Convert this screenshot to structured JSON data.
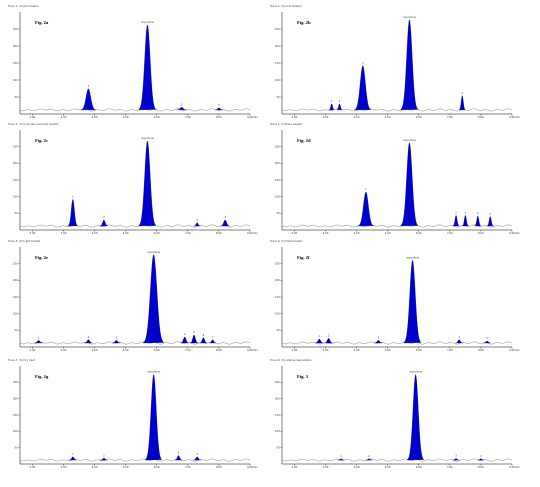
{
  "chart_data": [
    {
      "type": "area",
      "label": "Fig. 2a",
      "title": "Trace 1: (S) Not treated",
      "xlabel": "min",
      "xlim": [
        1.6,
        9.0
      ],
      "ylim": [
        0,
        300
      ],
      "x_ticks": [
        "2.00",
        "3.00",
        "4.00",
        "5.00",
        "6.00",
        "7.00",
        "8.00",
        "9.00"
      ],
      "y_ticks": [
        "50",
        "100",
        "150",
        "200",
        "250"
      ],
      "peaks": [
        {
          "rt": 3.8,
          "height": 62,
          "width": 0.18,
          "label": "1"
        },
        {
          "rt": 5.7,
          "height": 250,
          "width": 0.21,
          "label": "oxycodone"
        },
        {
          "rt": 6.8,
          "height": 8,
          "width": 0.12,
          "label": "2"
        },
        {
          "rt": 8.0,
          "height": 6,
          "width": 0.1,
          "label": "3"
        }
      ]
    },
    {
      "type": "area",
      "label": "Fig. 2b",
      "title": "Trace 2: (S) Acid treated",
      "xlabel": "min",
      "xlim": [
        1.6,
        9.0
      ],
      "ylim": [
        0,
        300
      ],
      "x_ticks": [
        "2.00",
        "3.00",
        "4.00",
        "5.00",
        "6.00",
        "7.00",
        "8.00",
        "9.00"
      ],
      "y_ticks": [
        "50",
        "100",
        "150",
        "200",
        "250"
      ],
      "peaks": [
        {
          "rt": 3.2,
          "height": 18,
          "width": 0.07,
          "label": "1"
        },
        {
          "rt": 3.45,
          "height": 18,
          "width": 0.07,
          "label": "2"
        },
        {
          "rt": 4.2,
          "height": 130,
          "width": 0.2,
          "label": "3"
        },
        {
          "rt": 5.7,
          "height": 265,
          "width": 0.21,
          "label": "oxycodone"
        },
        {
          "rt": 7.4,
          "height": 42,
          "width": 0.08,
          "label": "4"
        }
      ]
    },
    {
      "type": "area",
      "label": "Fig. 2c",
      "title": "Trace 3: (S) hydrogen peroxide treated",
      "xlabel": "min",
      "xlim": [
        1.6,
        9.0
      ],
      "ylim": [
        0,
        300
      ],
      "x_ticks": [
        "2.00",
        "3.00",
        "4.00",
        "5.00",
        "6.00",
        "7.00",
        "8.00",
        "9.00"
      ],
      "y_ticks": [
        "50",
        "100",
        "150",
        "200",
        "250"
      ],
      "peaks": [
        {
          "rt": 3.3,
          "height": 80,
          "width": 0.12,
          "label": "1"
        },
        {
          "rt": 4.3,
          "height": 18,
          "width": 0.1,
          "label": "2"
        },
        {
          "rt": 5.7,
          "height": 255,
          "width": 0.21,
          "label": "oxycodone"
        },
        {
          "rt": 7.3,
          "height": 10,
          "width": 0.08,
          "label": "3"
        },
        {
          "rt": 8.2,
          "height": 18,
          "width": 0.11,
          "label": "4"
        }
      ]
    },
    {
      "type": "area",
      "label": "Fig. 2d",
      "title": "Trace 4: (S) Base treated",
      "xlabel": "min",
      "xlim": [
        1.6,
        9.0
      ],
      "ylim": [
        0,
        300
      ],
      "x_ticks": [
        "2.00",
        "3.00",
        "4.00",
        "5.00",
        "6.00",
        "7.00",
        "8.00",
        "9.00"
      ],
      "y_ticks": [
        "50",
        "100",
        "150",
        "200",
        "250"
      ],
      "peaks": [
        {
          "rt": 4.3,
          "height": 102,
          "width": 0.19,
          "label": "1"
        },
        {
          "rt": 5.7,
          "height": 250,
          "width": 0.21,
          "label": "oxycodone"
        },
        {
          "rt": 7.2,
          "height": 32,
          "width": 0.08,
          "label": "2"
        },
        {
          "rt": 7.5,
          "height": 32,
          "width": 0.08,
          "label": "3"
        },
        {
          "rt": 7.9,
          "height": 30,
          "width": 0.08,
          "label": "4"
        },
        {
          "rt": 8.3,
          "height": 28,
          "width": 0.08,
          "label": "5"
        }
      ]
    },
    {
      "type": "area",
      "label": "Fig. 2e",
      "title": "Trace 5: (S) Light treated",
      "xlabel": "min",
      "xlim": [
        1.6,
        9.0
      ],
      "ylim": [
        0,
        300
      ],
      "x_ticks": [
        "2.00",
        "3.00",
        "4.00",
        "5.00",
        "6.00",
        "7.00",
        "8.00",
        "9.00"
      ],
      "y_ticks": [
        "50",
        "100",
        "150",
        "200",
        "250"
      ],
      "peaks": [
        {
          "rt": 2.2,
          "height": 8,
          "width": 0.1,
          "label": "1"
        },
        {
          "rt": 3.8,
          "height": 10,
          "width": 0.1,
          "label": "2"
        },
        {
          "rt": 4.7,
          "height": 8,
          "width": 0.1,
          "label": "3"
        },
        {
          "rt": 5.9,
          "height": 265,
          "width": 0.25,
          "label": "oxycodone"
        },
        {
          "rt": 6.9,
          "height": 18,
          "width": 0.1,
          "label": "4"
        },
        {
          "rt": 7.2,
          "height": 24,
          "width": 0.1,
          "label": "5"
        },
        {
          "rt": 7.5,
          "height": 16,
          "width": 0.09,
          "label": "6"
        },
        {
          "rt": 7.8,
          "height": 10,
          "width": 0.08,
          "label": "7"
        }
      ]
    },
    {
      "type": "area",
      "label": "Fig. 2f",
      "title": "Trace 6: (S) Heat treated",
      "xlabel": "min",
      "xlim": [
        1.6,
        9.0
      ],
      "ylim": [
        0,
        300
      ],
      "x_ticks": [
        "2.00",
        "3.00",
        "4.00",
        "5.00",
        "6.00",
        "7.00",
        "8.00",
        "9.00"
      ],
      "y_ticks": [
        "50",
        "100",
        "150",
        "200",
        "250"
      ],
      "peaks": [
        {
          "rt": 2.8,
          "height": 12,
          "width": 0.1,
          "label": "1"
        },
        {
          "rt": 3.1,
          "height": 14,
          "width": 0.1,
          "label": "2"
        },
        {
          "rt": 4.7,
          "height": 8,
          "width": 0.1,
          "label": "3"
        },
        {
          "rt": 5.8,
          "height": 248,
          "width": 0.21,
          "label": "oxycodone"
        },
        {
          "rt": 7.3,
          "height": 10,
          "width": 0.09,
          "label": "4"
        },
        {
          "rt": 8.2,
          "height": 6,
          "width": 0.09,
          "label": "5"
        }
      ]
    },
    {
      "type": "area",
      "label": "Fig. 2g",
      "title": "Trace 7: (S) Dry heat",
      "xlabel": "min",
      "xlim": [
        1.6,
        9.0
      ],
      "ylim": [
        0,
        300
      ],
      "x_ticks": [
        "2.00",
        "3.00",
        "4.00",
        "5.00",
        "6.00",
        "7.00",
        "8.00",
        "9.00"
      ],
      "y_ticks": [
        "50",
        "100",
        "150",
        "200",
        "250"
      ],
      "peaks": [
        {
          "rt": 3.3,
          "height": 10,
          "width": 0.09,
          "label": "1"
        },
        {
          "rt": 4.3,
          "height": 6,
          "width": 0.09,
          "label": "2"
        },
        {
          "rt": 5.9,
          "height": 262,
          "width": 0.2,
          "label": "oxycodone"
        },
        {
          "rt": 6.7,
          "height": 14,
          "width": 0.09,
          "label": "3"
        },
        {
          "rt": 7.3,
          "height": 10,
          "width": 0.09,
          "label": "4"
        }
      ]
    },
    {
      "type": "area",
      "label": "Fig. 3",
      "title": "Trace 8: (S) relative degradation",
      "xlabel": "min",
      "xlim": [
        1.6,
        9.0
      ],
      "ylim": [
        0,
        300
      ],
      "x_ticks": [
        "2.00",
        "3.00",
        "4.00",
        "5.00",
        "6.00",
        "7.00",
        "8.00",
        "9.00"
      ],
      "y_ticks": [
        "50",
        "100",
        "150",
        "200",
        "250"
      ],
      "peaks": [
        {
          "rt": 3.5,
          "height": 4,
          "width": 0.08,
          "label": "1"
        },
        {
          "rt": 4.4,
          "height": 4,
          "width": 0.08,
          "label": "2"
        },
        {
          "rt": 5.9,
          "height": 262,
          "width": 0.2,
          "label": "oxycodone"
        },
        {
          "rt": 7.2,
          "height": 5,
          "width": 0.08,
          "label": "3"
        },
        {
          "rt": 8.0,
          "height": 4,
          "width": 0.08,
          "label": "4"
        }
      ]
    }
  ]
}
